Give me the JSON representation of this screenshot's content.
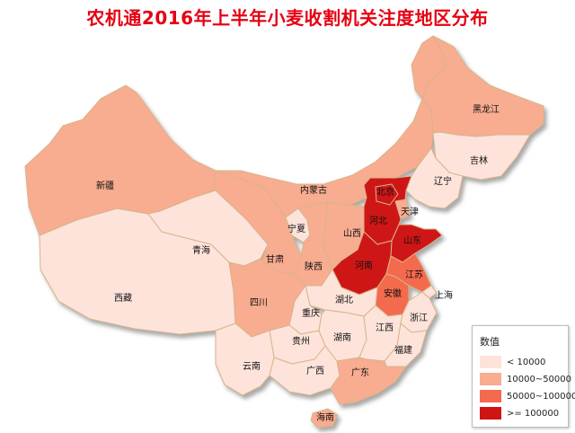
{
  "title": "农机通2016年上半年小麦收割机关注度地区分布",
  "colors": {
    "lt_10000": "#fde3da",
    "r_10000_50000": "#f8ac90",
    "r_50000_100000": "#f46a4e",
    "ge_100000": "#cf1414",
    "border": "#d7b58a",
    "sea_shadow": "#b4b4b4"
  },
  "legend": {
    "title": "数值",
    "items": [
      {
        "label": "< 10000",
        "class": "lt_10000"
      },
      {
        "label": "10000~50000",
        "class": "r_10000_50000"
      },
      {
        "label": "50000~100000",
        "class": "r_50000_100000"
      },
      {
        "label": ">= 100000",
        "class": "ge_100000"
      }
    ]
  },
  "provinces": [
    {
      "name": "黑龙江",
      "class": "r_10000_50000"
    },
    {
      "name": "吉林",
      "class": "lt_10000"
    },
    {
      "name": "辽宁",
      "class": "lt_10000"
    },
    {
      "name": "内蒙古",
      "class": "r_10000_50000"
    },
    {
      "name": "北京",
      "class": "ge_100000"
    },
    {
      "name": "天津",
      "class": "r_10000_50000"
    },
    {
      "name": "河北",
      "class": "ge_100000"
    },
    {
      "name": "山西",
      "class": "r_10000_50000"
    },
    {
      "name": "山东",
      "class": "ge_100000"
    },
    {
      "name": "河南",
      "class": "ge_100000"
    },
    {
      "name": "江苏",
      "class": "r_50000_100000"
    },
    {
      "name": "安徽",
      "class": "r_50000_100000"
    },
    {
      "name": "上海",
      "class": "lt_10000"
    },
    {
      "name": "浙江",
      "class": "lt_10000"
    },
    {
      "name": "福建",
      "class": "lt_10000"
    },
    {
      "name": "江西",
      "class": "lt_10000"
    },
    {
      "name": "湖北",
      "class": "lt_10000"
    },
    {
      "name": "湖南",
      "class": "lt_10000"
    },
    {
      "name": "广东",
      "class": "r_10000_50000"
    },
    {
      "name": "广西",
      "class": "lt_10000"
    },
    {
      "name": "海南",
      "class": "r_10000_50000"
    },
    {
      "name": "陕西",
      "class": "r_10000_50000"
    },
    {
      "name": "宁夏",
      "class": "lt_10000"
    },
    {
      "name": "甘肃",
      "class": "r_10000_50000"
    },
    {
      "name": "青海",
      "class": "lt_10000"
    },
    {
      "name": "新疆",
      "class": "r_10000_50000"
    },
    {
      "name": "西藏",
      "class": "lt_10000"
    },
    {
      "name": "四川",
      "class": "r_10000_50000"
    },
    {
      "name": "重庆",
      "class": "lt_10000"
    },
    {
      "name": "贵州",
      "class": "lt_10000"
    },
    {
      "name": "云南",
      "class": "lt_10000"
    }
  ]
}
